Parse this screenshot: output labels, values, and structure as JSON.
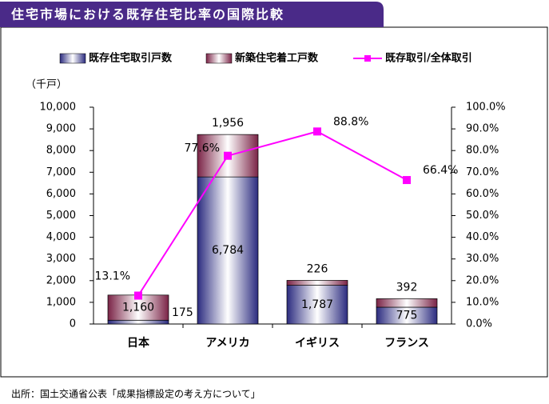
{
  "chart_data": {
    "type": "bar",
    "stacked": true,
    "title": "住宅市場における既存住宅比率の国際比較",
    "y_label": "（千戸）",
    "source": "出所：国土交通省公表「成果指標設定の考え方について」",
    "categories": [
      "日本",
      "アメリカ",
      "イギリス",
      "フランス"
    ],
    "series": [
      {
        "name": "既存住宅取引戸数",
        "type": "bar",
        "color": "#2b2b7f",
        "values": [
          175,
          6784,
          1787,
          775
        ],
        "value_labels": [
          "175",
          "6,784",
          "1,787",
          "775"
        ]
      },
      {
        "name": "新築住宅着工戸数",
        "type": "bar",
        "color": "#7a2346",
        "values": [
          1160,
          1956,
          226,
          392
        ],
        "value_labels": [
          "1,160",
          "1,956",
          "226",
          "392"
        ]
      },
      {
        "name": "既存取引/全体取引",
        "type": "line",
        "axis": "y2",
        "color": "#ff00ff",
        "values": [
          13.1,
          77.6,
          88.8,
          66.4
        ],
        "value_labels": [
          "13.1%",
          "77.6%",
          "88.8%",
          "66.4%"
        ]
      }
    ],
    "ylim": [
      0,
      10000
    ],
    "yticks": [
      0,
      {
        "value": 1000,
        "label": "1,000"
      },
      {
        "value": 2000,
        "label": "2,000"
      },
      {
        "value": 3000,
        "label": "3,000"
      },
      {
        "value": 4000,
        "label": "4,000"
      },
      {
        "value": 5000,
        "label": "5,000"
      },
      {
        "value": 6000,
        "label": "6,000"
      },
      {
        "value": 7000,
        "label": "7,000"
      },
      {
        "value": 8000,
        "label": "8,000"
      },
      {
        "value": 9000,
        "label": "9,000"
      },
      {
        "value": 10000,
        "label": "10,000"
      }
    ],
    "y2lim": [
      0,
      100
    ],
    "y2ticks": [
      {
        "value": 0,
        "label": "0.0%"
      },
      {
        "value": 10,
        "label": "10.0%"
      },
      {
        "value": 20,
        "label": "20.0%"
      },
      {
        "value": 30,
        "label": "30.0%"
      },
      {
        "value": 40,
        "label": "40.0%"
      },
      {
        "value": 50,
        "label": "50.0%"
      },
      {
        "value": 60,
        "label": "60.0%"
      },
      {
        "value": 70,
        "label": "70.0%"
      },
      {
        "value": 80,
        "label": "80.0%"
      },
      {
        "value": 90,
        "label": "90.0%"
      },
      {
        "value": 100,
        "label": "100.0%"
      }
    ],
    "grid": false,
    "legend": "top"
  }
}
